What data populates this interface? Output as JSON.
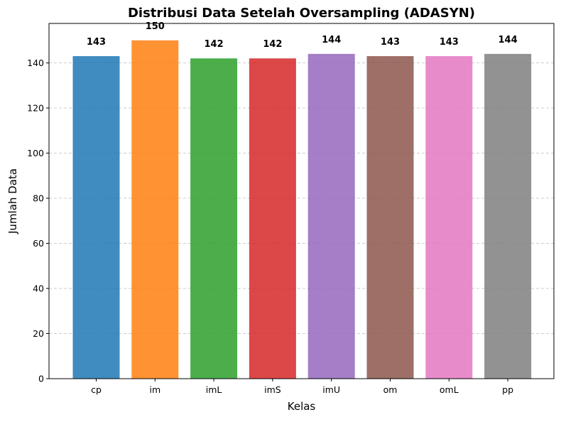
{
  "chart_data": {
    "type": "bar",
    "title": "Distribusi Data Setelah Oversampling (ADASYN)",
    "xlabel": "Kelas",
    "ylabel": "Jumlah Data",
    "categories": [
      "cp",
      "im",
      "imL",
      "imS",
      "imU",
      "om",
      "omL",
      "pp"
    ],
    "values": [
      143,
      150,
      142,
      142,
      144,
      143,
      143,
      144
    ],
    "colors": [
      "#1f77b4",
      "#ff7f0e",
      "#2ca02c",
      "#d62728",
      "#9467bd",
      "#8c564b",
      "#e377c2",
      "#7f7f7f"
    ],
    "bar_opacity": 0.85,
    "ylim": [
      0,
      157.5
    ],
    "yticks": [
      0,
      20,
      40,
      60,
      80,
      100,
      120,
      140
    ],
    "grid": "y-dashed",
    "data_labels": true
  }
}
